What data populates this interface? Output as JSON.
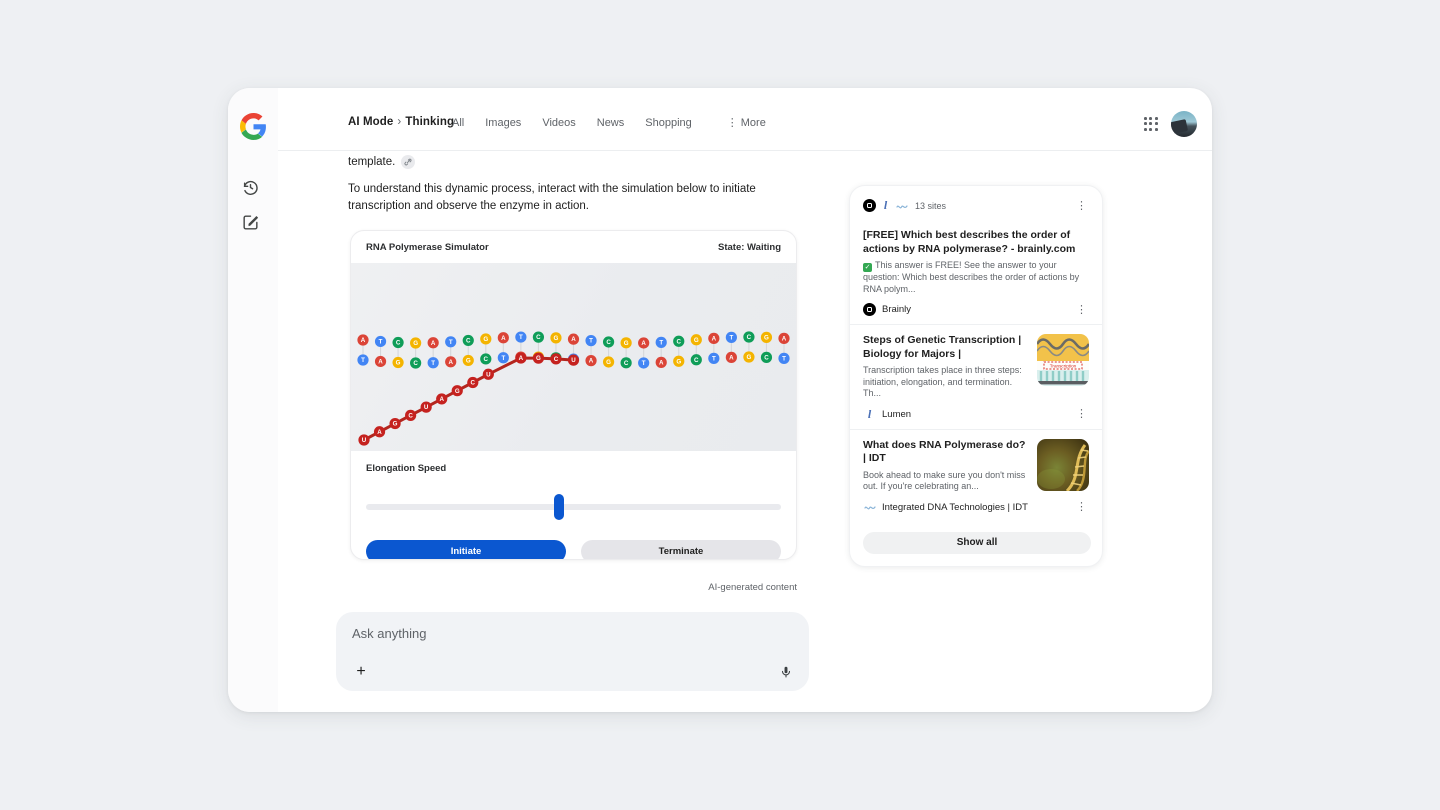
{
  "page": {
    "background": "#eef0f3",
    "window_background": "#ffffff"
  },
  "rail": {
    "logo": "google-g",
    "items": [
      {
        "icon": "history-icon"
      },
      {
        "icon": "new-chat-icon"
      }
    ]
  },
  "header": {
    "breadcrumb": {
      "primary": "AI Mode",
      "separator": "›",
      "secondary": "Thinking"
    },
    "tabs": [
      "All",
      "Images",
      "Videos",
      "News",
      "Shopping"
    ],
    "more_label": "More"
  },
  "answer": {
    "fragment": "template.",
    "paragraph": "To understand this dynamic process, interact with the simulation below to initiate transcription and observe the enzyme in action.",
    "ai_note": "AI-generated content"
  },
  "simulator": {
    "title": "RNA Polymerase Simulator",
    "state_label": "State: Waiting",
    "slider_label": "Elongation Speed",
    "slider_percent": 46.5,
    "initiate_label": "Initiate",
    "terminate_label": "Terminate",
    "dna": {
      "top_strand": "ATCGATCGATCGATCGATCGATCGA",
      "bottom_strand": "TAGCTAGCTAGCTAGCTAGCTAGCT",
      "rna_transcript": "UAGCUAGCUAGCU",
      "rna_lead_column": 12,
      "colors": {
        "A": "#db4437",
        "T": "#4285f4",
        "C": "#0f9d58",
        "G": "#f4b400",
        "U": "#c5221f",
        "chain": "#b3261e",
        "pair_line": "#d5d7da"
      }
    }
  },
  "ask_bar": {
    "placeholder": "Ask anything",
    "icons": [
      "plus-icon",
      "mic-icon"
    ]
  },
  "sources_panel": {
    "sites_label": "13 sites",
    "favicons": [
      "brainly",
      "lumen",
      "idt"
    ],
    "show_all_label": "Show all",
    "results": [
      {
        "title": "[FREE] Which best describes the order of actions by RNA polymerase? - brainly.com",
        "snippet": "This answer is FREE! See the answer to your question: Which best describes the order of actions by RNA polym...",
        "has_check": true,
        "source": "Brainly",
        "favicon": "brainly",
        "thumbnail": null
      },
      {
        "title": "Steps of Genetic Transcription | Biology for Majors |",
        "snippet": "Transcription takes place in three steps: initiation, elongation, and termination. Th...",
        "has_check": false,
        "source": "Lumen",
        "favicon": "lumen",
        "thumbnail": "transcription-diagram",
        "thumbnail_label": "Transcription"
      },
      {
        "title": "What does RNA Polymerase do? | IDT",
        "snippet": "Book ahead to make sure you don't miss out. If you're celebrating an...",
        "has_check": false,
        "source": "Integrated DNA Technologies | IDT",
        "favicon": "idt",
        "thumbnail": "dna-helix-photo"
      }
    ]
  }
}
